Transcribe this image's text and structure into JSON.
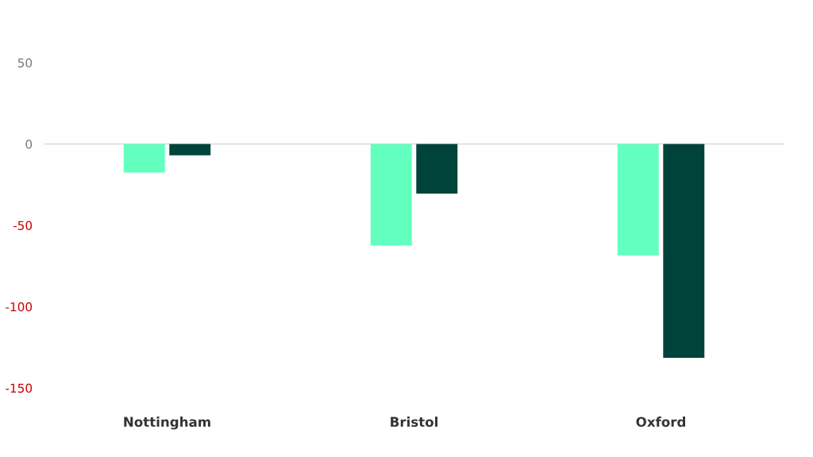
{
  "chart_data": {
    "type": "bar",
    "categories": [
      "Nottingham",
      "Bristol",
      "Oxford"
    ],
    "series": [
      {
        "color": "#62ffbf",
        "values": [
          -17.5,
          -62.5,
          -68.5
        ]
      },
      {
        "color": "#00433a",
        "values": [
          -7,
          -30.5,
          -131.5
        ]
      }
    ],
    "ylim": [
      -150,
      50
    ],
    "yticks": [
      50,
      0,
      -50,
      -100,
      -150
    ],
    "grid": false,
    "legend": false,
    "ref_lines": [
      {
        "axis": "y",
        "value": 0,
        "color": "#d9d9d9"
      }
    ]
  }
}
